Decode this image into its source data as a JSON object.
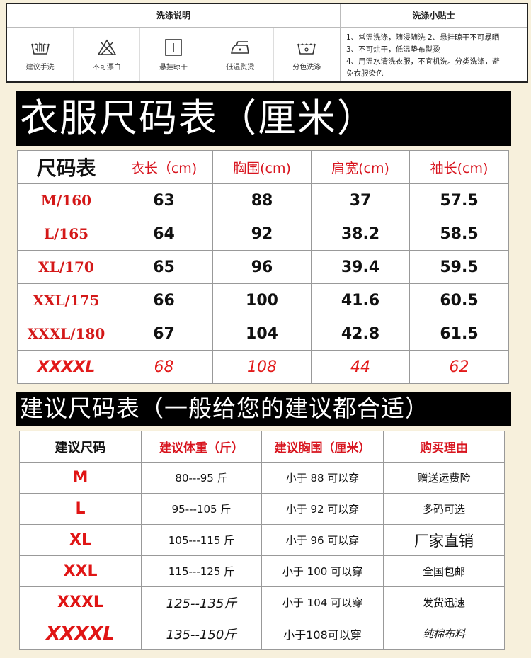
{
  "care": {
    "left_title": "洗涤说明",
    "right_title": "洗涤小贴士",
    "icons": [
      {
        "icon": "hand-wash-icon",
        "label": "建议手洗"
      },
      {
        "icon": "no-bleach-icon",
        "label": "不可漂白"
      },
      {
        "icon": "hang-dry-icon",
        "label": "悬挂晾干"
      },
      {
        "icon": "low-iron-icon",
        "label": "低温熨烫"
      },
      {
        "icon": "separate-wash-icon",
        "label": "分色洗涤"
      }
    ],
    "tips": [
      "1、常温洗涤，随浸随洗 2、悬挂晾干不可暴晒",
      "3、不可烘干，低温垫布熨烫",
      "4、用温水清洗衣服，不宜机洗。分类洗涤，避",
      "免衣服染色"
    ]
  },
  "size_chart": {
    "title": "衣服尺码表（厘米）",
    "headers": [
      "尺码表",
      "衣长（cm)",
      "胸围(cm)",
      "肩宽(cm)",
      "袖长(cm)"
    ],
    "rows": [
      [
        "M/160",
        "63",
        "88",
        "37",
        "57.5"
      ],
      [
        "L/165",
        "64",
        "92",
        "38.2",
        "58.5"
      ],
      [
        "XL/170",
        "65",
        "96",
        "39.4",
        "59.5"
      ],
      [
        "XXL/175",
        "66",
        "100",
        "41.6",
        "60.5"
      ],
      [
        "XXXL/180",
        "67",
        "104",
        "42.8",
        "61.5"
      ],
      [
        "XXXXL",
        "68",
        "108",
        "44",
        "62"
      ]
    ]
  },
  "recommend_chart": {
    "title": "建议尺码表（一般给您的建议都合适）",
    "headers": [
      "建议尺码",
      "建议体重（斤）",
      "建议胸围（厘米）",
      "购买理由"
    ],
    "rows": [
      [
        "M",
        "80---95 斤",
        "小于 88 可以穿",
        "赠送运费险"
      ],
      [
        "L",
        "95---105 斤",
        "小于 92 可以穿",
        "多码可选"
      ],
      [
        "XL",
        "105---115 斤",
        "小于 96 可以穿",
        "厂家直销"
      ],
      [
        "XXL",
        "115---125 斤",
        "小于 100 可以穿",
        "全国包邮"
      ],
      [
        "XXXL",
        "125--135斤",
        "小于 104 可以穿",
        "发货迅速"
      ],
      [
        "XXXXL",
        "135--150斤",
        "小于108可以穿",
        "纯棉布料"
      ]
    ]
  }
}
